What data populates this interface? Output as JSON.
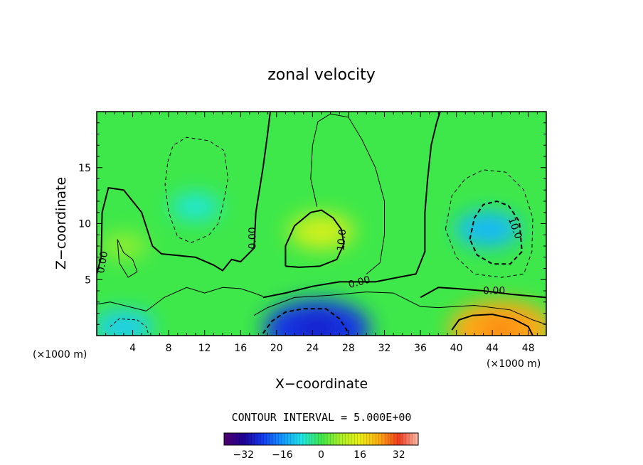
{
  "chart_data": {
    "type": "heatmap",
    "title": "zonal velocity",
    "xlabel": "X−coordinate",
    "ylabel": "Z−coordinate",
    "x_unit": "(×1000 m)",
    "y_unit": "(×1000 m)",
    "xlim": [
      0,
      50
    ],
    "ylim": [
      0,
      20
    ],
    "x_ticks": [
      4,
      8,
      12,
      16,
      20,
      24,
      28,
      32,
      36,
      40,
      44,
      48
    ],
    "y_ticks": [
      5,
      10,
      15
    ],
    "contour_interval_text": "CONTOUR INTERVAL = 5.000E+00",
    "contour_interval": 5.0,
    "contour_labels": [
      {
        "text": "0.00",
        "x": 1,
        "y": 6.5,
        "rotate": -80
      },
      {
        "text": "0.00",
        "x": 17.7,
        "y": 8.7,
        "rotate": -90
      },
      {
        "text": "10.0",
        "x": 27.6,
        "y": 8.5,
        "rotate": -85
      },
      {
        "text": "0.00",
        "x": 29.3,
        "y": 4.5,
        "rotate": -15
      },
      {
        "text": "0.00",
        "x": 44.2,
        "y": 3.7,
        "rotate": 0
      },
      {
        "text": "10.0",
        "x": 46.2,
        "y": 9.5,
        "rotate": 70
      }
    ],
    "field_features": [
      {
        "name": "max",
        "x": 25,
        "y": 9.3,
        "value": 12
      },
      {
        "name": "max",
        "x": 45,
        "y": 0.6,
        "value": 24
      },
      {
        "name": "max",
        "x": 3,
        "y": 8,
        "value": 6
      },
      {
        "name": "min",
        "x": 24.5,
        "y": 0.6,
        "value": -25
      },
      {
        "name": "min",
        "x": 43.5,
        "y": 9.5,
        "value": -12
      },
      {
        "name": "min",
        "x": 11,
        "y": 11.5,
        "value": -7
      },
      {
        "name": "min",
        "x": 3,
        "y": 0.8,
        "value": -10
      }
    ],
    "colorbar": {
      "ticks": [
        -32,
        -16,
        0,
        16,
        32
      ],
      "tick_labels": [
        "−32",
        "−16",
        "0",
        "16",
        "32"
      ],
      "range": [
        -40,
        40
      ]
    }
  }
}
